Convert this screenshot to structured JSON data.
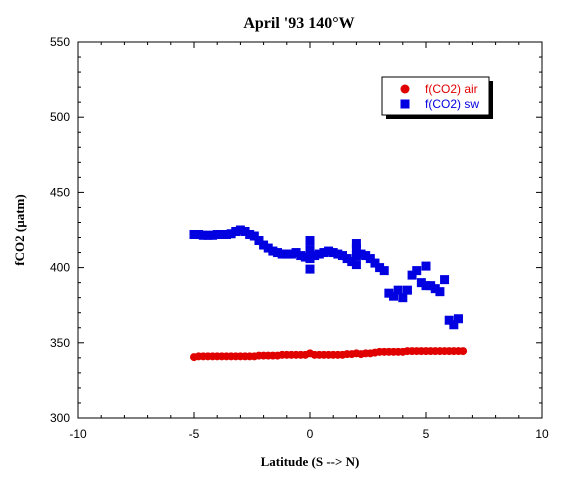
{
  "chart_data": {
    "type": "scatter",
    "title": "April '93 140°W",
    "xlabel": "Latitude (S --> N)",
    "ylabel": "fCO2 (µatm)",
    "xlim": [
      -10,
      10
    ],
    "ylim": [
      300,
      550
    ],
    "x_ticks": [
      "-10",
      "-5",
      "0",
      "5",
      "10"
    ],
    "y_ticks": [
      "300",
      "350",
      "400",
      "450",
      "500",
      "550"
    ],
    "grid": false,
    "legend_position": "top-right",
    "series": [
      {
        "name": "f(CO2) air",
        "marker": "circle",
        "color": "#e00000",
        "points": [
          [
            -5.0,
            340.5
          ],
          [
            -4.8,
            341.0
          ],
          [
            -4.6,
            341.0
          ],
          [
            -4.4,
            341.0
          ],
          [
            -4.2,
            341.0
          ],
          [
            -4.0,
            341.0
          ],
          [
            -3.8,
            341.0
          ],
          [
            -3.6,
            341.0
          ],
          [
            -3.4,
            341.0
          ],
          [
            -3.2,
            341.0
          ],
          [
            -3.0,
            341.0
          ],
          [
            -2.8,
            341.0
          ],
          [
            -2.6,
            341.0
          ],
          [
            -2.4,
            341.0
          ],
          [
            -2.2,
            341.5
          ],
          [
            -2.0,
            341.5
          ],
          [
            -1.8,
            341.5
          ],
          [
            -1.6,
            341.5
          ],
          [
            -1.4,
            341.5
          ],
          [
            -1.2,
            342.0
          ],
          [
            -1.0,
            342.0
          ],
          [
            -0.8,
            342.0
          ],
          [
            -0.6,
            342.0
          ],
          [
            -0.4,
            342.0
          ],
          [
            -0.2,
            342.0
          ],
          [
            0.0,
            343.0
          ],
          [
            0.2,
            342.0
          ],
          [
            0.4,
            342.0
          ],
          [
            0.6,
            342.0
          ],
          [
            0.8,
            342.0
          ],
          [
            1.0,
            342.0
          ],
          [
            1.2,
            342.0
          ],
          [
            1.4,
            342.0
          ],
          [
            1.6,
            342.5
          ],
          [
            1.8,
            342.5
          ],
          [
            2.0,
            343.0
          ],
          [
            2.2,
            342.5
          ],
          [
            2.4,
            343.0
          ],
          [
            2.6,
            343.0
          ],
          [
            2.8,
            343.5
          ],
          [
            3.0,
            344.0
          ],
          [
            3.2,
            344.0
          ],
          [
            3.4,
            344.0
          ],
          [
            3.6,
            344.0
          ],
          [
            3.8,
            344.0
          ],
          [
            4.0,
            344.0
          ],
          [
            4.2,
            344.5
          ],
          [
            4.4,
            344.5
          ],
          [
            4.6,
            344.5
          ],
          [
            4.8,
            344.5
          ],
          [
            5.0,
            344.5
          ],
          [
            5.2,
            344.5
          ],
          [
            5.4,
            344.5
          ],
          [
            5.6,
            344.5
          ],
          [
            5.8,
            344.5
          ],
          [
            6.0,
            344.5
          ],
          [
            6.2,
            344.5
          ],
          [
            6.4,
            344.5
          ],
          [
            6.6,
            344.5
          ]
        ]
      },
      {
        "name": "f(CO2) sw",
        "marker": "square",
        "color": "#0000e0",
        "points": [
          [
            -5.0,
            422
          ],
          [
            -4.8,
            422
          ],
          [
            -4.6,
            421.5
          ],
          [
            -4.4,
            421.5
          ],
          [
            -4.2,
            421.5
          ],
          [
            -4.0,
            422
          ],
          [
            -3.8,
            422
          ],
          [
            -3.6,
            422
          ],
          [
            -3.4,
            422.5
          ],
          [
            -3.2,
            424
          ],
          [
            -3.0,
            425
          ],
          [
            -2.8,
            424
          ],
          [
            -2.6,
            422
          ],
          [
            -2.4,
            421
          ],
          [
            -2.2,
            418
          ],
          [
            -2.0,
            415
          ],
          [
            -1.8,
            413
          ],
          [
            -1.6,
            411
          ],
          [
            -1.4,
            410
          ],
          [
            -1.2,
            409
          ],
          [
            -1.0,
            409
          ],
          [
            -0.8,
            409
          ],
          [
            -0.6,
            410
          ],
          [
            -0.4,
            408
          ],
          [
            -0.2,
            407
          ],
          [
            0.0,
            418
          ],
          [
            0.0,
            412
          ],
          [
            0.0,
            406
          ],
          [
            0.0,
            399
          ],
          [
            0.2,
            408
          ],
          [
            0.4,
            409
          ],
          [
            0.6,
            410
          ],
          [
            0.8,
            411
          ],
          [
            1.0,
            410
          ],
          [
            1.2,
            409
          ],
          [
            1.4,
            408
          ],
          [
            1.6,
            406
          ],
          [
            1.8,
            404
          ],
          [
            2.0,
            416
          ],
          [
            2.0,
            413
          ],
          [
            2.0,
            408
          ],
          [
            2.0,
            402
          ],
          [
            2.2,
            409
          ],
          [
            2.4,
            408
          ],
          [
            2.6,
            406
          ],
          [
            2.8,
            403
          ],
          [
            3.0,
            400
          ],
          [
            3.2,
            398
          ],
          [
            3.4,
            383
          ],
          [
            3.6,
            381
          ],
          [
            3.8,
            385
          ],
          [
            4.0,
            380
          ],
          [
            4.2,
            385
          ],
          [
            4.4,
            395
          ],
          [
            4.6,
            398
          ],
          [
            4.8,
            390
          ],
          [
            5.0,
            401
          ],
          [
            5.0,
            388
          ],
          [
            5.2,
            388
          ],
          [
            5.4,
            386
          ],
          [
            5.6,
            384
          ],
          [
            5.8,
            392
          ],
          [
            6.0,
            365
          ],
          [
            6.2,
            362
          ],
          [
            6.4,
            366
          ]
        ]
      }
    ]
  }
}
